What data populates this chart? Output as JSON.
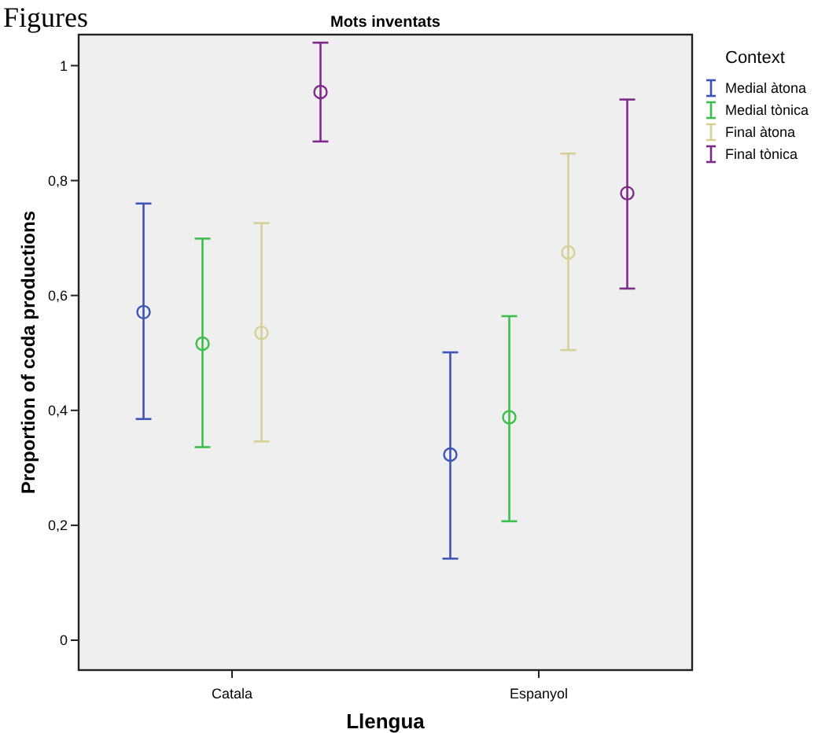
{
  "chart_data": {
    "type": "scatter",
    "title": "Mots inventats",
    "xlabel": "Llengua",
    "ylabel": "Proportion of coda productions",
    "legend_title": "Context",
    "annotations": [
      "Figures"
    ],
    "categories": [
      "Catala",
      "Espanyol"
    ],
    "series": [
      {
        "name": "Medial àtona",
        "color": "#3d55b8",
        "values": [
          0.571,
          0.323
        ],
        "errors": [
          [
            0.385,
            0.76
          ],
          [
            0.142,
            0.501
          ]
        ]
      },
      {
        "name": "Medial tònica",
        "color": "#3cbf4a",
        "values": [
          0.516,
          0.388
        ],
        "errors": [
          [
            0.336,
            0.699
          ],
          [
            0.207,
            0.564
          ]
        ]
      },
      {
        "name": "Final àtona",
        "color": "#d6d096",
        "values": [
          0.535,
          0.675
        ],
        "errors": [
          [
            0.346,
            0.726
          ],
          [
            0.505,
            0.847
          ]
        ]
      },
      {
        "name": "Final tònica",
        "color": "#7f2a8a",
        "values": [
          0.954,
          0.778
        ],
        "errors": [
          [
            0.868,
            1.04
          ],
          [
            0.612,
            0.941
          ]
        ]
      }
    ],
    "ylim": [
      -0.052,
      1.054
    ],
    "yticks": [
      0,
      {
        "value": 0.2,
        "label": "0,2"
      },
      {
        "value": 0.4,
        "label": "0,4"
      },
      {
        "value": 0.6,
        "label": "0,6"
      },
      {
        "value": 0.8,
        "label": "0,8"
      },
      1
    ],
    "marker": "circle",
    "legend": "top right",
    "grid": false
  }
}
